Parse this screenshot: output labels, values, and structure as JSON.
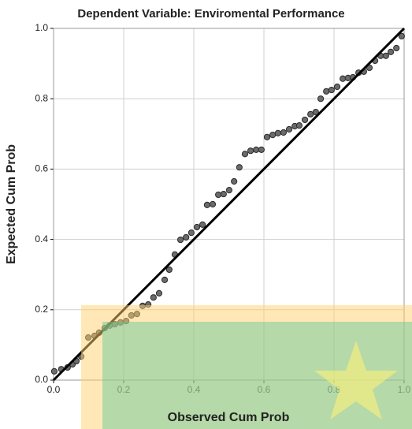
{
  "chart_data": {
    "type": "scatter",
    "title": "Dependent Variable: Enviromental Performance",
    "x_label": "Observed Cum Prob",
    "y_label": "Expected Cum Prob",
    "x": [
      0.002,
      0.022,
      0.04,
      0.054,
      0.065,
      0.079,
      0.099,
      0.117,
      0.13,
      0.146,
      0.16,
      0.175,
      0.191,
      0.207,
      0.222,
      0.238,
      0.254,
      0.27,
      0.285,
      0.301,
      0.317,
      0.33,
      0.346,
      0.362,
      0.378,
      0.393,
      0.409,
      0.425,
      0.438,
      0.454,
      0.47,
      0.485,
      0.501,
      0.515,
      0.53,
      0.546,
      0.562,
      0.578,
      0.593,
      0.609,
      0.625,
      0.64,
      0.656,
      0.672,
      0.688,
      0.701,
      0.717,
      0.733,
      0.748,
      0.762,
      0.778,
      0.793,
      0.809,
      0.825,
      0.84,
      0.854,
      0.87,
      0.885,
      0.901,
      0.917,
      0.933,
      0.948,
      0.962,
      0.978,
      0.993
    ],
    "values": [
      0.025,
      0.031,
      0.036,
      0.045,
      0.054,
      0.067,
      0.121,
      0.126,
      0.135,
      0.148,
      0.155,
      0.159,
      0.164,
      0.168,
      0.184,
      0.188,
      0.211,
      0.215,
      0.235,
      0.247,
      0.285,
      0.314,
      0.357,
      0.399,
      0.406,
      0.419,
      0.435,
      0.442,
      0.498,
      0.5,
      0.527,
      0.529,
      0.54,
      0.565,
      0.605,
      0.643,
      0.652,
      0.655,
      0.655,
      0.691,
      0.697,
      0.702,
      0.704,
      0.713,
      0.722,
      0.724,
      0.74,
      0.756,
      0.762,
      0.8,
      0.821,
      0.825,
      0.834,
      0.857,
      0.859,
      0.861,
      0.874,
      0.877,
      0.888,
      0.908,
      0.922,
      0.922,
      0.933,
      0.944,
      0.978
    ],
    "color": "#6b6b6b",
    "xlim": [
      0,
      1
    ],
    "ylim": [
      0,
      1
    ],
    "xticks": [
      {
        "value": 0,
        "label": "0.0"
      },
      0.2,
      0.4,
      0.6,
      0.8,
      {
        "value": 1,
        "label": "1.0"
      }
    ],
    "yticks": [
      {
        "value": 0,
        "label": "0.0"
      },
      0.2,
      0.4,
      0.6,
      0.8,
      {
        "value": 1,
        "label": "1.0"
      }
    ],
    "grid": true,
    "reference_line": true
  }
}
